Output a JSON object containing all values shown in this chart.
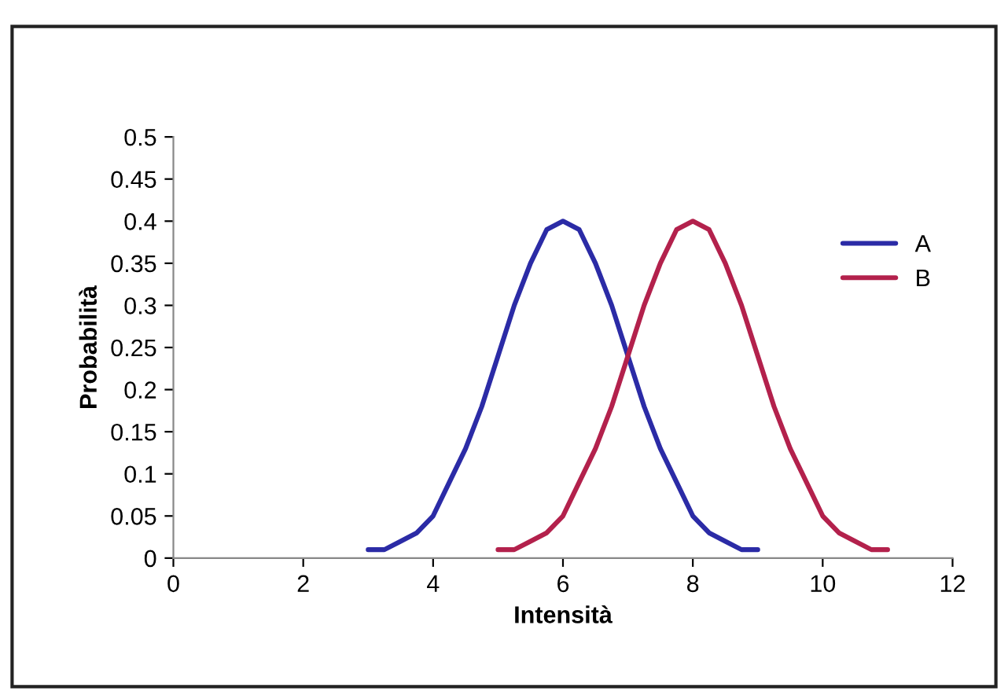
{
  "chart_data": {
    "type": "line",
    "xlabel": "Intensità",
    "ylabel": "Probabilità",
    "xlim": [
      0,
      12
    ],
    "xticks": [
      0,
      2,
      4,
      6,
      8,
      10,
      12
    ],
    "ylim": [
      0,
      0.5
    ],
    "yticks": [
      0,
      0.05,
      0.1,
      0.15,
      0.2,
      0.25,
      0.3,
      0.35,
      0.4,
      0.45,
      0.5
    ],
    "grid": false,
    "legend": "top right",
    "marker": "none",
    "line_style": "solid",
    "series": [
      {
        "name": "A",
        "color": "#2b2ba6",
        "x": [
          3,
          3.25,
          3.5,
          3.75,
          4,
          4.25,
          4.5,
          4.75,
          5,
          5.25,
          5.5,
          5.75,
          6,
          6.25,
          6.5,
          6.75,
          7,
          7.25,
          7.5,
          7.75,
          8,
          8.25,
          8.5,
          8.75,
          9
        ],
        "values": [
          0.01,
          0.01,
          0.02,
          0.03,
          0.05,
          0.09,
          0.13,
          0.18,
          0.24,
          0.3,
          0.35,
          0.39,
          0.4,
          0.39,
          0.35,
          0.3,
          0.24,
          0.18,
          0.13,
          0.09,
          0.05,
          0.03,
          0.02,
          0.01,
          0.01
        ]
      },
      {
        "name": "B",
        "color": "#b3214c",
        "x": [
          5,
          5.25,
          5.5,
          5.75,
          6,
          6.25,
          6.5,
          6.75,
          7,
          7.25,
          7.5,
          7.75,
          8,
          8.25,
          8.5,
          8.75,
          9,
          9.25,
          9.5,
          9.75,
          10,
          10.25,
          10.5,
          10.75,
          11
        ],
        "values": [
          0.01,
          0.01,
          0.02,
          0.03,
          0.05,
          0.09,
          0.13,
          0.18,
          0.24,
          0.3,
          0.35,
          0.39,
          0.4,
          0.39,
          0.35,
          0.3,
          0.24,
          0.18,
          0.13,
          0.09,
          0.05,
          0.03,
          0.02,
          0.01,
          0.01
        ]
      }
    ]
  }
}
